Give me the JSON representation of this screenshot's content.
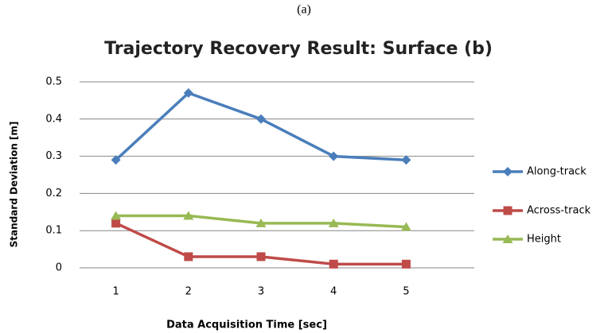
{
  "chart_data": {
    "type": "line",
    "annotation": "(a)",
    "title": "Trajectory Recovery Result: Surface (b)",
    "x_label": "Data Acquisition Time [sec]",
    "y_label": "Standard Deviation [m]",
    "categories": [
      "1",
      "2",
      "3",
      "4",
      "5"
    ],
    "series": [
      {
        "name": "Along-track",
        "color": "#4a7ebb",
        "marker": "diamond",
        "values": [
          0.29,
          0.47,
          0.4,
          0.3,
          0.29
        ]
      },
      {
        "name": "Across-track",
        "color": "#be4b48",
        "marker": "square",
        "values": [
          0.12,
          0.03,
          0.03,
          0.01,
          0.01
        ]
      },
      {
        "name": "Height",
        "color": "#98b954",
        "marker": "triangle",
        "values": [
          0.14,
          0.14,
          0.12,
          0.12,
          0.11
        ]
      }
    ],
    "ylim": [
      0,
      0.5
    ],
    "yticks": [
      0,
      0.1,
      0.2,
      0.3,
      0.4,
      0.5
    ],
    "grid": true,
    "legend": "right"
  }
}
